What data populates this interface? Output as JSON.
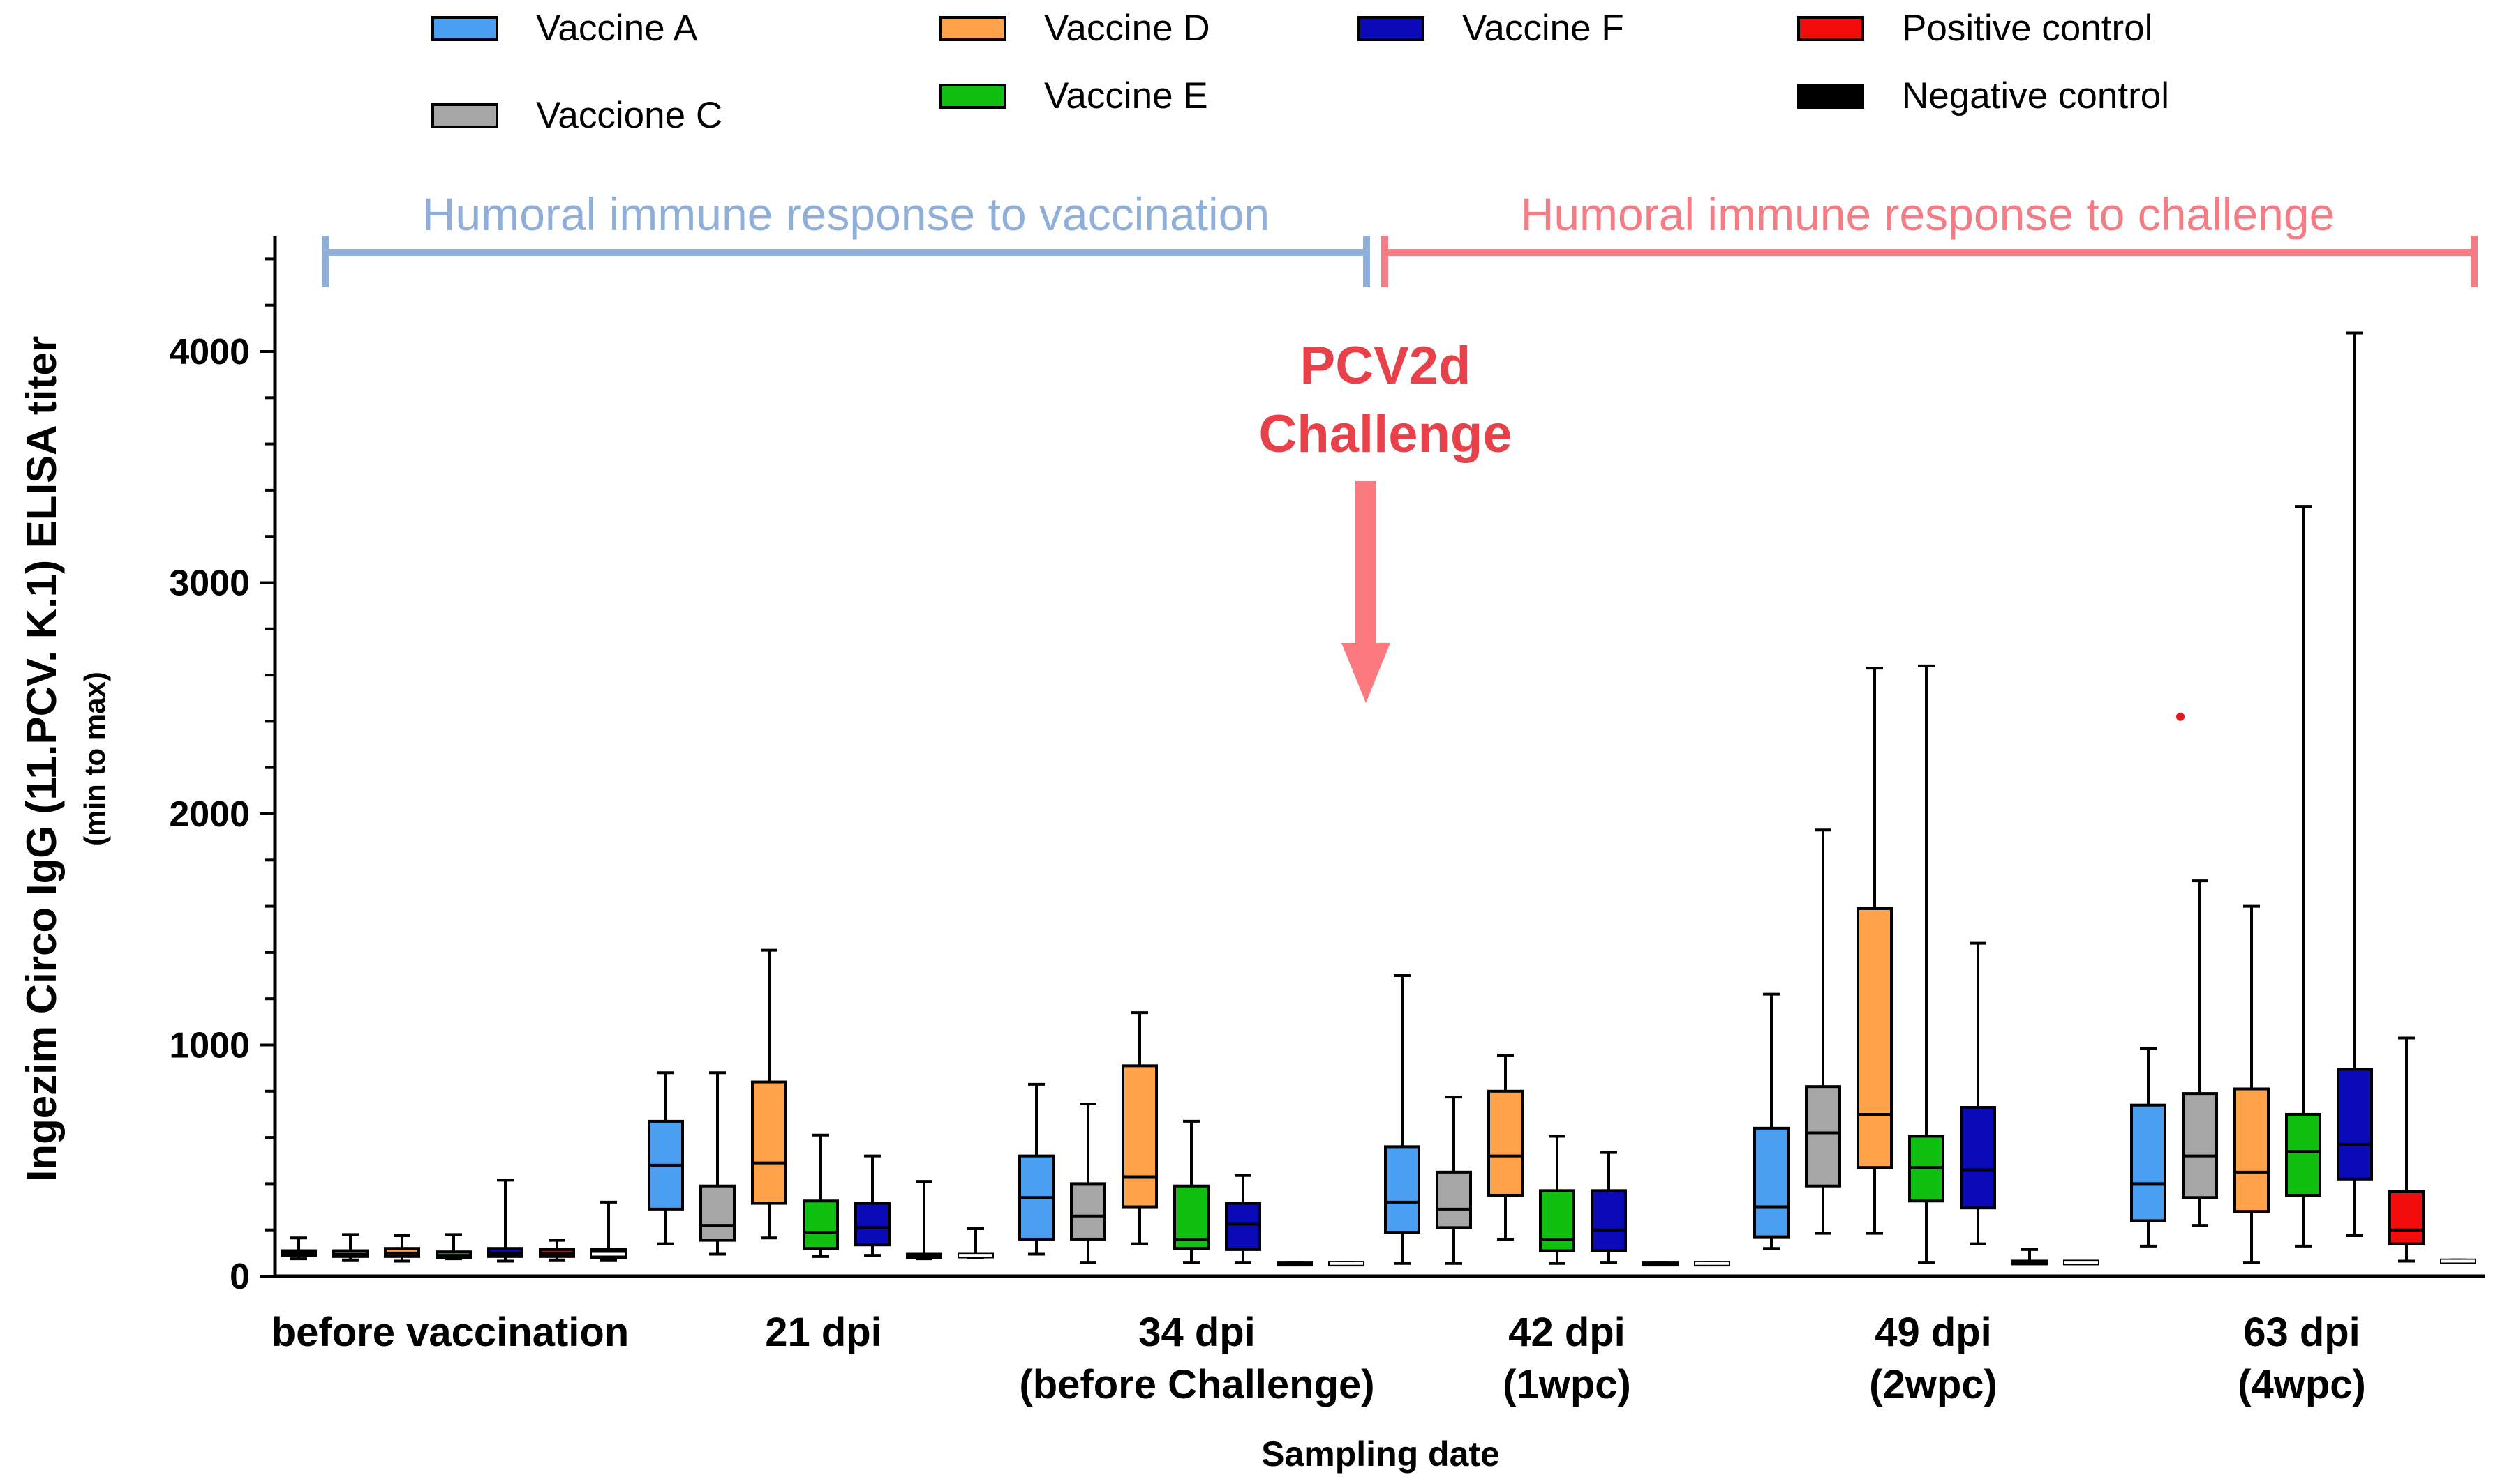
{
  "chart_data": {
    "type": "box",
    "ylabel": "Ingezim Circo IgG (11.PCV. K.1) ELISA  titer",
    "ylabel_sub": "(min to max)",
    "xlabel": "Sampling date",
    "ylim": [
      0,
      4500
    ],
    "yticks": [
      0,
      1000,
      2000,
      3000,
      4000
    ],
    "ytick_labels": [
      "0",
      "1000",
      "2000",
      "3000",
      "4000"
    ],
    "categories": [
      {
        "line1": "before vaccination",
        "line2": ""
      },
      {
        "line1": "21 dpi",
        "line2": ""
      },
      {
        "line1": "34 dpi",
        "line2": "(before Challenge)"
      },
      {
        "line1": "42 dpi",
        "line2": "(1wpc)"
      },
      {
        "line1": "49 dpi",
        "line2": "(2wpc)"
      },
      {
        "line1": "63 dpi",
        "line2": "(4wpc)"
      }
    ],
    "series": [
      {
        "name": "Vaccine A",
        "color": "#4a9ff0",
        "boxes": [
          [
            75,
            90,
            100,
            110,
            165
          ],
          [
            140,
            290,
            480,
            670,
            880
          ],
          [
            95,
            160,
            340,
            520,
            830
          ],
          [
            55,
            190,
            320,
            560,
            1300
          ],
          [
            120,
            170,
            300,
            640,
            1220
          ],
          [
            130,
            240,
            400,
            740,
            985
          ]
        ]
      },
      {
        "name": "Vaccione C",
        "color": "#a6a6a6",
        "boxes": [
          [
            70,
            85,
            95,
            110,
            180
          ],
          [
            95,
            155,
            220,
            390,
            880
          ],
          [
            60,
            160,
            260,
            400,
            745
          ],
          [
            55,
            210,
            290,
            450,
            775
          ],
          [
            185,
            390,
            620,
            820,
            1930
          ],
          [
            220,
            340,
            520,
            790,
            1710
          ]
        ]
      },
      {
        "name": "Vaccine D",
        "color": "#ffa24a",
        "boxes": [
          [
            65,
            85,
            100,
            120,
            175
          ],
          [
            165,
            315,
            490,
            840,
            1410
          ],
          [
            140,
            300,
            430,
            910,
            1140
          ],
          [
            160,
            350,
            520,
            800,
            955
          ],
          [
            185,
            470,
            700,
            1590,
            2630
          ],
          [
            60,
            280,
            450,
            810,
            1600
          ]
        ]
      },
      {
        "name": "Vaccine E",
        "color": "#11bf11",
        "boxes": [
          [
            75,
            80,
            90,
            105,
            180
          ],
          [
            85,
            120,
            190,
            325,
            610
          ],
          [
            60,
            120,
            160,
            390,
            670
          ],
          [
            55,
            110,
            160,
            370,
            605
          ],
          [
            60,
            325,
            470,
            605,
            2640
          ],
          [
            130,
            350,
            540,
            700,
            3330
          ]
        ]
      },
      {
        "name": "Vaccine F",
        "color": "#0a0ab8",
        "boxes": [
          [
            65,
            85,
            100,
            120,
            415
          ],
          [
            90,
            135,
            210,
            315,
            520
          ],
          [
            60,
            115,
            225,
            315,
            435
          ],
          [
            60,
            110,
            200,
            370,
            535
          ],
          [
            140,
            295,
            460,
            730,
            1440
          ],
          [
            175,
            420,
            570,
            895,
            4080
          ]
        ]
      },
      {
        "name": "Positive control",
        "color": "#f20c0c",
        "boxes": [
          [
            70,
            85,
            100,
            115,
            155
          ],
          [
            75,
            80,
            90,
            95,
            410
          ],
          [
            55,
            55,
            55,
            60,
            60
          ],
          [
            55,
            55,
            55,
            60,
            60
          ],
          [
            55,
            55,
            60,
            65,
            115
          ],
          [
            65,
            140,
            200,
            365,
            1030
          ]
        ]
      },
      {
        "name": "Negative control",
        "color": "#000000",
        "boxes": [
          [
            70,
            80,
            95,
            115,
            320
          ],
          [
            80,
            85,
            90,
            95,
            205
          ],
          [
            55,
            55,
            55,
            60,
            60
          ],
          [
            55,
            55,
            55,
            60,
            60
          ],
          [
            55,
            55,
            60,
            65,
            65
          ],
          [
            60,
            60,
            65,
            70,
            70
          ]
        ]
      }
    ],
    "outliers": [
      {
        "series": "Vaccine A",
        "category": "63 dpi",
        "value": 2420,
        "color": "#e51919"
      }
    ],
    "legend": {
      "placement": "top"
    },
    "annotations": {
      "vaccination_text": "Humoral immune response to vaccination",
      "vaccination_color": "#90afd8",
      "challenge_text": "Humoral immune response to challenge",
      "challenge_color": "#f47c85",
      "challenge_line1": "PCV2d",
      "challenge_line2": "Challenge",
      "arrow_color": "#fb7a7f"
    }
  }
}
